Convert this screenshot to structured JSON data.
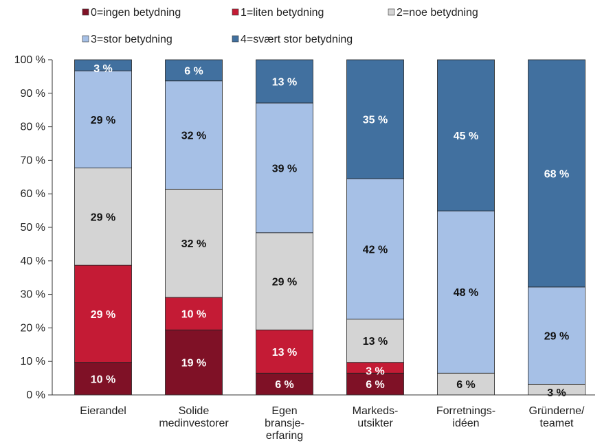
{
  "chart_data": {
    "type": "bar",
    "stacked": true,
    "categories": [
      [
        "Eierandel"
      ],
      [
        "Solide",
        "medinvestorer"
      ],
      [
        "Egen",
        "bransje-",
        "erfaring"
      ],
      [
        "Markeds-",
        "utsikter"
      ],
      [
        "Forretnings-",
        "idéen"
      ],
      [
        "Gründerne/",
        "teamet"
      ]
    ],
    "series": [
      {
        "name": "0=ingen betydning",
        "color": "#7f1126",
        "label_color": "#ffffff",
        "values": [
          9.7,
          19.4,
          6.5,
          6.5,
          0,
          0
        ],
        "labels": [
          "10 %",
          "19 %",
          "6 %",
          "6 %",
          "",
          ""
        ]
      },
      {
        "name": "1=liten betydning",
        "color": "#c41b35",
        "label_color": "#ffffff",
        "values": [
          29.0,
          9.7,
          12.9,
          3.2,
          0,
          0
        ],
        "labels": [
          "29 %",
          "10 %",
          "13 %",
          "3 %",
          "",
          ""
        ]
      },
      {
        "name": "2=noe betydning",
        "color": "#d4d4d4",
        "label_color": "#111111",
        "values": [
          29.0,
          32.3,
          29.0,
          12.9,
          6.5,
          3.2
        ],
        "labels": [
          "29 %",
          "32 %",
          "29 %",
          "13 %",
          "6 %",
          "3 %"
        ]
      },
      {
        "name": "3=stor betydning",
        "color": "#a6c0e6",
        "label_color": "#111111",
        "values": [
          29.0,
          32.3,
          38.7,
          41.9,
          48.4,
          29.0
        ],
        "labels": [
          "29 %",
          "32 %",
          "39 %",
          "42 %",
          "48 %",
          "29 %"
        ]
      },
      {
        "name": "4=svært stor betydning",
        "color": "#41709f",
        "label_color": "#ffffff",
        "values": [
          3.3,
          6.3,
          12.9,
          35.5,
          45.1,
          67.8
        ],
        "labels": [
          "3 %",
          "6 %",
          "13 %",
          "35 %",
          "45 %",
          "68 %"
        ]
      }
    ],
    "ylim": [
      0,
      100
    ],
    "yticks": [
      "0 %",
      "10 %",
      "20 %",
      "30 %",
      "40 %",
      "50 %",
      "60 %",
      "70 %",
      "80 %",
      "90 %",
      "100 %"
    ],
    "legend": "top",
    "grid": false
  }
}
